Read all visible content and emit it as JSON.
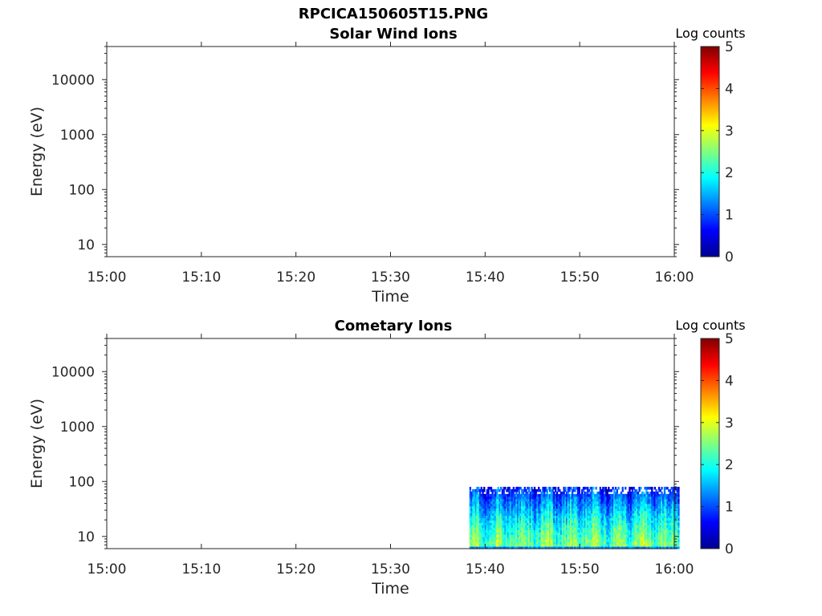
{
  "figure": {
    "title": "RPCICA150605T15.PNG",
    "subtitle": "Solar Wind Ions"
  },
  "chart_data": [
    {
      "type": "heatmap",
      "title": "Solar Wind Ions",
      "xlabel": "Time",
      "ylabel": "Energy (eV)",
      "x_ticks": [
        "15:00",
        "15:10",
        "15:20",
        "15:30",
        "15:40",
        "15:50",
        "16:00"
      ],
      "y_ticks": [
        "10",
        "100",
        "1000",
        "10000"
      ],
      "y_scale": "log",
      "ylim": [
        6,
        40000
      ],
      "xlim": [
        "15:00",
        "16:00"
      ],
      "colorbar": {
        "label": "Log counts",
        "ticks": [
          "0",
          "1",
          "2",
          "3",
          "4",
          "5"
        ],
        "range": [
          0,
          5
        ],
        "colormap": "jet"
      },
      "data": []
    },
    {
      "type": "heatmap",
      "title": "Cometary Ions",
      "xlabel": "Time",
      "ylabel": "Energy (eV)",
      "x_ticks": [
        "15:00",
        "15:10",
        "15:20",
        "15:30",
        "15:40",
        "15:50",
        "16:00"
      ],
      "y_ticks": [
        "10",
        "100",
        "1000",
        "10000"
      ],
      "y_scale": "log",
      "ylim": [
        6,
        40000
      ],
      "xlim": [
        "15:00",
        "16:00"
      ],
      "colorbar": {
        "label": "Log counts",
        "ticks": [
          "0",
          "1",
          "2",
          "3",
          "4",
          "5"
        ],
        "range": [
          0,
          5
        ],
        "colormap": "jet"
      },
      "data": [
        {
          "time_start": "15:38:20",
          "time_end": "16:00",
          "energy_range_eV": [
            6,
            80
          ],
          "log_counts_low_energy": 2.5,
          "log_counts_high_energy": 0.8
        }
      ]
    }
  ]
}
